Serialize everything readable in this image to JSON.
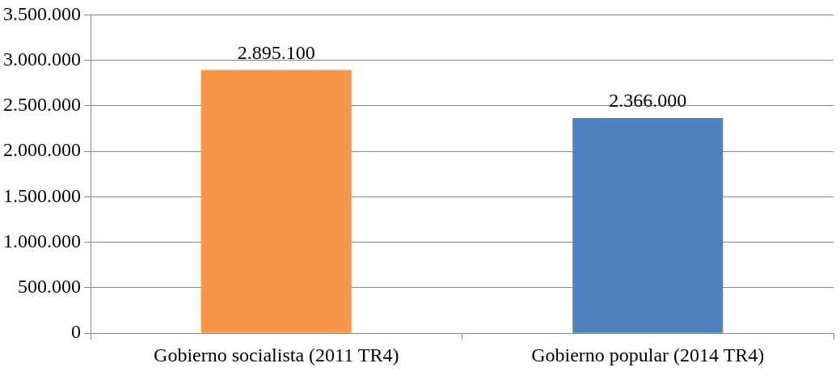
{
  "chart_data": {
    "type": "bar",
    "categories": [
      "Gobierno socialista (2011 TR4)",
      "Gobierno popular (2014 TR4)"
    ],
    "values": [
      2895100,
      2366000
    ],
    "colors": [
      "#f79646",
      "#4f81bd"
    ],
    "value_labels": [
      "2.895.100",
      "2.366.000"
    ],
    "ylim": [
      0,
      3500000
    ],
    "yticks": [
      {
        "value": 0,
        "label": "0"
      },
      {
        "value": 500000,
        "label": "500.000"
      },
      {
        "value": 1000000,
        "label": "1.000.000"
      },
      {
        "value": 1500000,
        "label": "1.500.000"
      },
      {
        "value": 2000000,
        "label": "2.000.000"
      },
      {
        "value": 2500000,
        "label": "2.500.000"
      },
      {
        "value": 3000000,
        "label": "3.000.000"
      },
      {
        "value": 3500000,
        "label": "3.500.000"
      }
    ],
    "grid": "y",
    "legend": false
  }
}
